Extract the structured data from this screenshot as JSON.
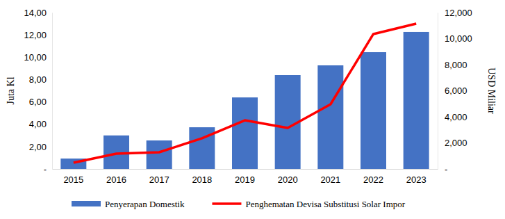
{
  "chart_data": {
    "type": "bar",
    "categories": [
      "2015",
      "2016",
      "2017",
      "2018",
      "2019",
      "2020",
      "2021",
      "2022",
      "2023"
    ],
    "series": [
      {
        "name": "Penyerapan Domestik",
        "type": "bar",
        "color": "#4472c4",
        "values": [
          0.93,
          3.0,
          2.55,
          3.73,
          6.4,
          8.4,
          9.27,
          10.45,
          12.26
        ]
      },
      {
        "name": "Penghematan Devisa Substitusi Solar Impor",
        "type": "line",
        "axis": "y2",
        "color": "#ff0000",
        "values": [
          480,
          1170,
          1280,
          2350,
          3730,
          3150,
          4960,
          10350,
          11150
        ]
      }
    ],
    "y_label": "Juta Kl",
    "y2_label": "USD Miliar",
    "ylim": [
      0,
      14
    ],
    "yticks": [
      {
        "value": 0,
        "label": "-"
      },
      {
        "value": 2,
        "label": "2,00"
      },
      {
        "value": 4,
        "label": "4,00"
      },
      {
        "value": 6,
        "label": "6,00"
      },
      {
        "value": 8,
        "label": "8,00"
      },
      {
        "value": 10,
        "label": "10,00"
      },
      {
        "value": 12,
        "label": "12,00"
      },
      {
        "value": 14,
        "label": "14,00"
      }
    ],
    "y2lim": [
      0,
      12000
    ],
    "y2ticks": [
      {
        "value": 0,
        "label": "-"
      },
      {
        "value": 2000,
        "label": "2,000"
      },
      {
        "value": 4000,
        "label": "4,000"
      },
      {
        "value": 6000,
        "label": "6,000"
      },
      {
        "value": 8000,
        "label": "8,000"
      },
      {
        "value": 10000,
        "label": "10,000"
      },
      {
        "value": 12000,
        "label": "12,000"
      }
    ],
    "grid": false,
    "legend": "bottom"
  }
}
